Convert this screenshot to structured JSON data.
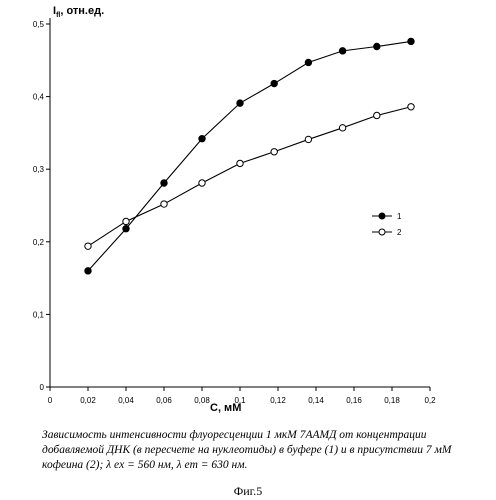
{
  "chart_data": {
    "type": "line",
    "ylabel": "I fl, отн.ед.",
    "ylabel_main": "I",
    "ylabel_sub": "fl",
    "ylabel_rest": ", отн.ед.",
    "xlabel": "C, мM",
    "xlim": [
      0,
      0.2
    ],
    "ylim": [
      0,
      0.5
    ],
    "x_ticks": [
      "0",
      "0,02",
      "0,04",
      "0,06",
      "0,08",
      "0,1",
      "0,12",
      "0,14",
      "0,16",
      "0,18",
      "0,2"
    ],
    "y_ticks": [
      "0",
      "0,1",
      "0,2",
      "0,3",
      "0,4",
      "0,5"
    ],
    "grid": false,
    "legend_position": "right-middle",
    "series": [
      {
        "name": "1",
        "marker": "filled-circle",
        "x": [
          0.02,
          0.04,
          0.06,
          0.08,
          0.1,
          0.118,
          0.136,
          0.154,
          0.172,
          0.19
        ],
        "y": [
          0.16,
          0.218,
          0.281,
          0.342,
          0.391,
          0.418,
          0.447,
          0.463,
          0.469,
          0.476
        ]
      },
      {
        "name": "2",
        "marker": "open-circle",
        "x": [
          0.02,
          0.04,
          0.06,
          0.08,
          0.1,
          0.118,
          0.136,
          0.154,
          0.172,
          0.19
        ],
        "y": [
          0.194,
          0.228,
          0.252,
          0.281,
          0.308,
          0.324,
          0.341,
          0.357,
          0.374,
          0.386
        ]
      }
    ]
  },
  "caption": {
    "line1": "Зависимость интенсивности флуоресценции 1 мкМ 7ААМД от концентрации",
    "line2": "добавляемой ДНК (в пересчете на нуклеотиды) в буфере (1)  и в присутствии 7 мМ",
    "line3": "кофеина (2); λ ex = 560 нм, λ em = 630 нм."
  },
  "figure_label": "Фиг.5"
}
